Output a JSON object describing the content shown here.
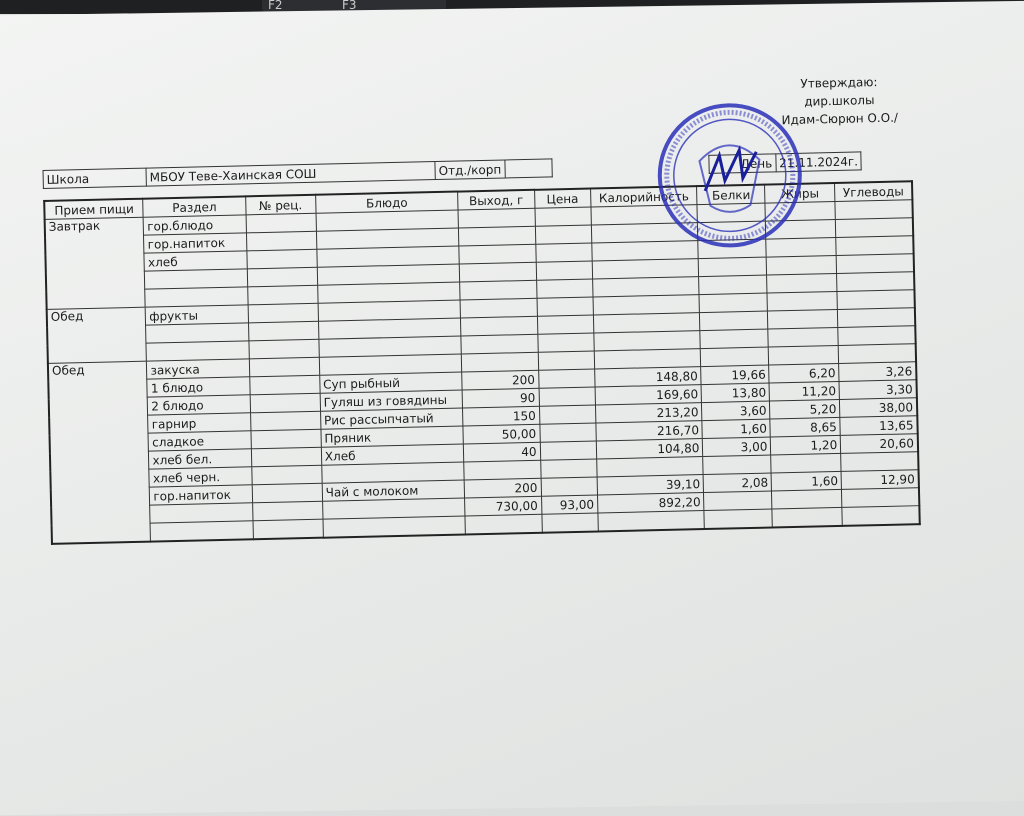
{
  "keyboard": {
    "keys": [
      "F2",
      "F3"
    ]
  },
  "approval": {
    "line1": "Утверждаю:",
    "line2": "дир.школы",
    "line3": "Идам-Сюрюн О.О./"
  },
  "header": {
    "school_label": "Школа",
    "school_value": "МБОУ Теве-Хаинская СОШ",
    "dept_label": "Отд./корп",
    "day_label": "День",
    "date": "21.11.2024г."
  },
  "columns": [
    "Прием пищи",
    "Раздел",
    "№ рец.",
    "Блюдо",
    "Выход, г",
    "Цена",
    "Калорийность",
    "Белки",
    "Жиры",
    "Углеводы"
  ],
  "breakfast": {
    "meal": "Завтрак",
    "sections": [
      "гор.блюдо",
      "гор.напиток",
      "хлеб",
      "",
      ""
    ]
  },
  "lunch1": {
    "meal": "Обед",
    "sections": [
      "фрукты",
      "",
      ""
    ]
  },
  "lunch2": {
    "meal": "Обед",
    "rows": [
      {
        "section": "закуска",
        "dish": "",
        "out": "",
        "price": "",
        "cal": "",
        "prot": "",
        "fat": "",
        "carb": ""
      },
      {
        "section": "1 блюдо",
        "dish": "Суп рыбный",
        "out": "200",
        "price": "",
        "cal": "148,80",
        "prot": "19,66",
        "fat": "6,20",
        "carb": "3,26"
      },
      {
        "section": "2 блюдо",
        "dish": "Гуляш из говядины",
        "out": "90",
        "price": "",
        "cal": "169,60",
        "prot": "13,80",
        "fat": "11,20",
        "carb": "3,30"
      },
      {
        "section": "гарнир",
        "dish": "Рис рассыпчатый",
        "out": "150",
        "price": "",
        "cal": "213,20",
        "prot": "3,60",
        "fat": "5,20",
        "carb": "38,00"
      },
      {
        "section": "сладкое",
        "dish": "Пряник",
        "out": "50,00",
        "price": "",
        "cal": "216,70",
        "prot": "1,60",
        "fat": "8,65",
        "carb": "13,65"
      },
      {
        "section": "хлеб бел.",
        "dish": "Хлеб",
        "out": "40",
        "price": "",
        "cal": "104,80",
        "prot": "3,00",
        "fat": "1,20",
        "carb": "20,60"
      },
      {
        "section": "хлеб черн.",
        "dish": "",
        "out": "",
        "price": "",
        "cal": "",
        "prot": "",
        "fat": "",
        "carb": ""
      },
      {
        "section": "гор.напиток",
        "dish": "Чай с молоком",
        "out": "200",
        "price": "",
        "cal": "39,10",
        "prot": "2,08",
        "fat": "1,60",
        "carb": "12,90"
      },
      {
        "section": "",
        "dish": "",
        "out": "730,00",
        "price": "93,00",
        "cal": "892,20",
        "prot": "",
        "fat": "",
        "carb": ""
      }
    ]
  },
  "stamp": {
    "color": "#2a2fb8",
    "text": "МБОУ Теве-Хаинская СОШ"
  }
}
